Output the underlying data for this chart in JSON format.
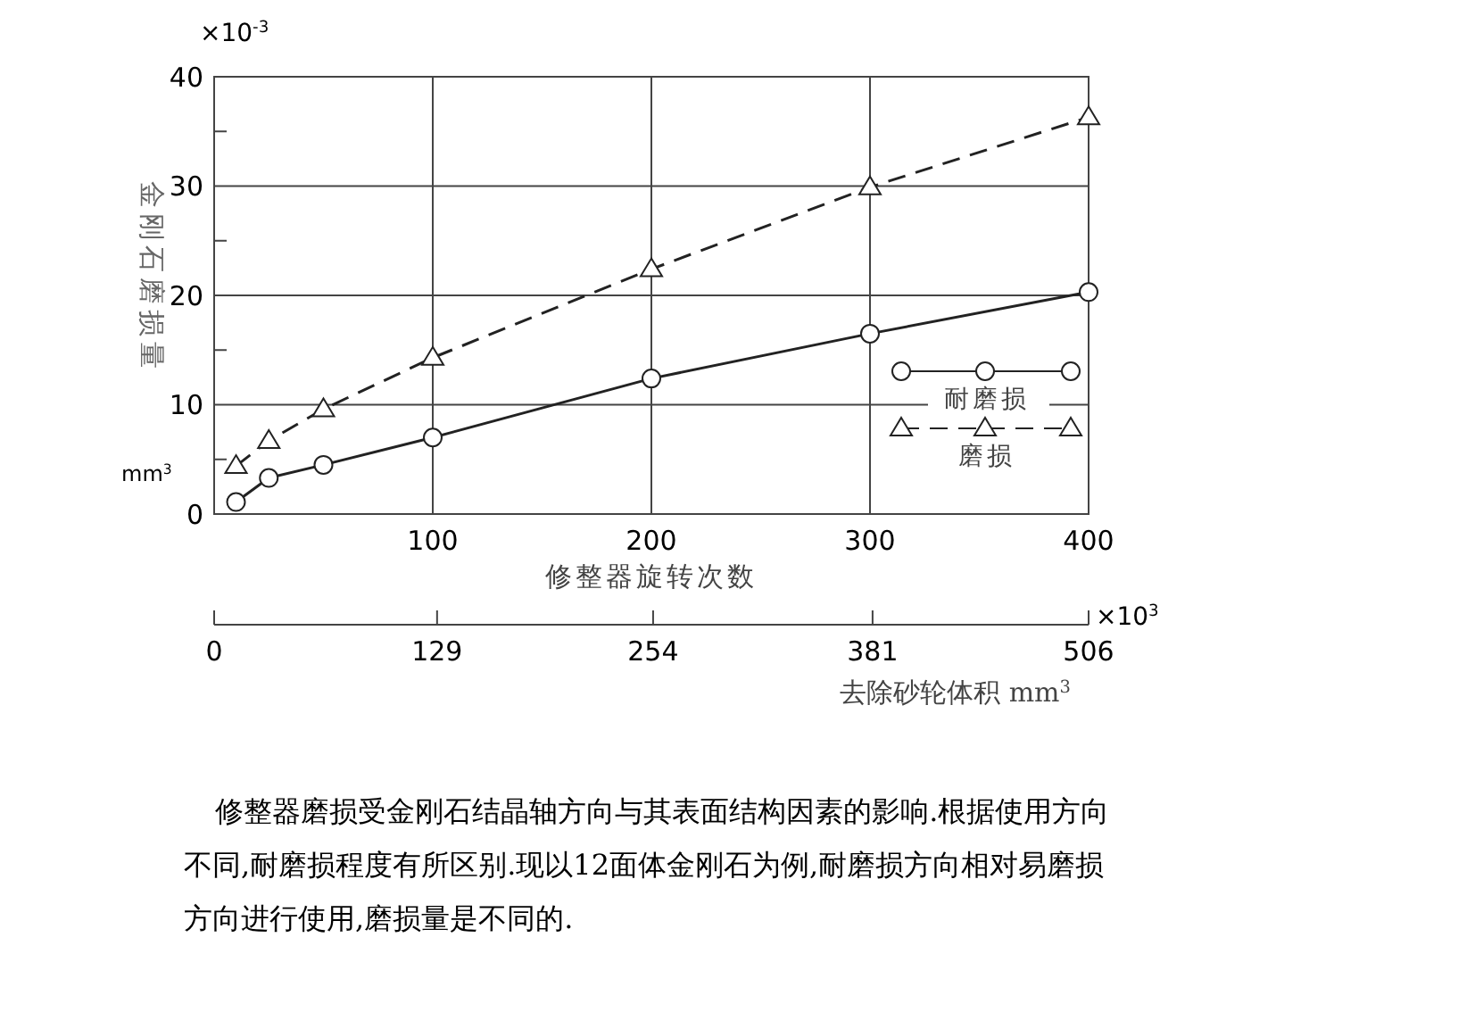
{
  "chart_data": {
    "type": "line",
    "xlabel": "修整器旋转次数",
    "ylabel": "金刚石磨损量",
    "x2label": "去除砂轮体积 mm$^{3}$",
    "xlim": [
      0,
      400
    ],
    "xticks": [
      {
        "value": 0,
        "label": null
      },
      100,
      200,
      300,
      400
    ],
    "ylim": [
      0,
      40
    ],
    "yticks": [
      0,
      {
        "value": 5,
        "label": null
      },
      10,
      {
        "value": 15,
        "label": null
      },
      20,
      {
        "value": 25,
        "label": null
      },
      30,
      {
        "value": 35,
        "label": null
      },
      40
    ],
    "x2lim": [
      0,
      506
    ],
    "x2ticks": [
      0,
      129,
      254,
      381,
      506
    ],
    "grid": true,
    "legend": "bottom right",
    "series": [
      {
        "name": "耐磨损",
        "color": "#222222",
        "marker": "circle",
        "line_style": "solid",
        "x": [
          10,
          25,
          50,
          100,
          200,
          300,
          400
        ],
        "values": [
          1.1,
          3.3,
          4.5,
          7.0,
          12.4,
          16.5,
          20.3
        ]
      },
      {
        "name": "磨损",
        "color": "#222222",
        "marker": "triangle",
        "line_style": "dashed",
        "x": [
          10,
          25,
          50,
          100,
          200,
          300,
          400
        ],
        "values": [
          4.4,
          6.7,
          9.6,
          14.3,
          22.4,
          29.9,
          36.3
        ]
      }
    ],
    "annotations": [
      "×10$^{-3}$",
      "mm$^{3}$",
      "×10$^{3}$",
      "修整器磨损受金刚石结晶轴方向与其表面结构因素的影响.根据使用方向不同,耐磨损程度有所区别.现以12面体金刚石为例,耐磨损方向相对易磨损方向进行使用,磨损量是不同的."
    ]
  }
}
